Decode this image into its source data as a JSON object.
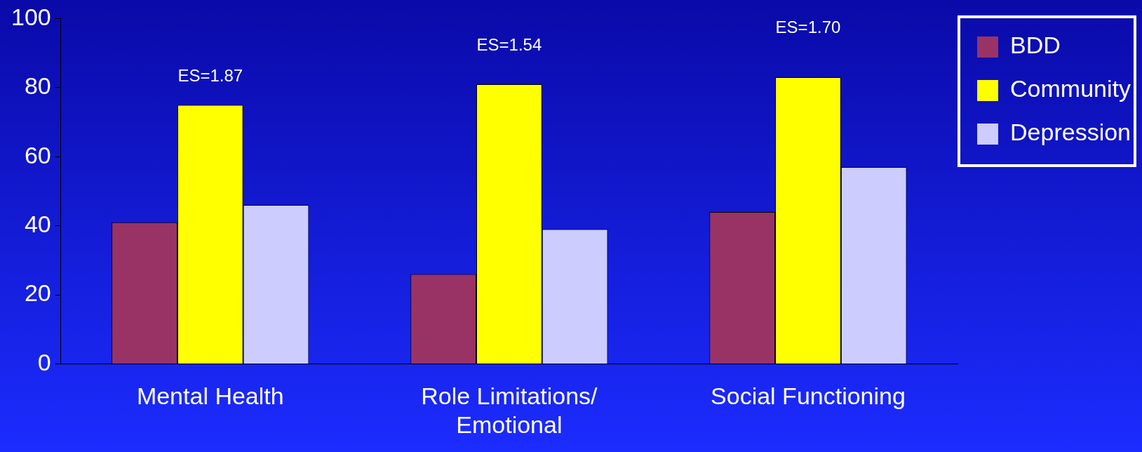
{
  "chart_data": {
    "type": "bar",
    "categories": [
      "Mental Health",
      "Role Limitations/ Emotional",
      "Social Functioning"
    ],
    "series": [
      {
        "name": "BDD",
        "color": "#993366",
        "values": [
          41,
          26,
          44
        ]
      },
      {
        "name": "Community",
        "color": "#ffff00",
        "values": [
          75,
          81,
          83
        ]
      },
      {
        "name": "Depression",
        "color": "#ccccff",
        "values": [
          46,
          39,
          57
        ]
      }
    ],
    "ylim": [
      0,
      100
    ],
    "yticks": [
      0,
      20,
      40,
      60,
      80,
      100
    ],
    "grid": false,
    "legend": "top right",
    "annotations": [
      "ES=1.87",
      "ES=1.54",
      "ES=1.70"
    ]
  }
}
